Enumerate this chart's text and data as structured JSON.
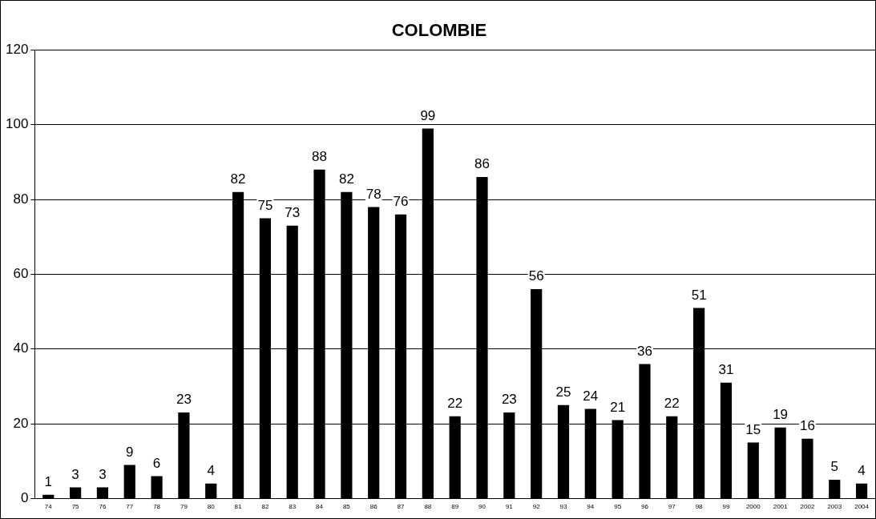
{
  "chart_data": {
    "type": "bar",
    "title": "COLOMBIE",
    "categories": [
      "74",
      "75",
      "76",
      "77",
      "78",
      "79",
      "80",
      "81",
      "82",
      "83",
      "84",
      "85",
      "86",
      "87",
      "88",
      "89",
      "90",
      "91",
      "92",
      "93",
      "94",
      "95",
      "96",
      "97",
      "98",
      "99",
      "2000",
      "2001",
      "2002",
      "2003",
      "2004"
    ],
    "values": [
      1,
      3,
      3,
      9,
      6,
      23,
      4,
      82,
      75,
      73,
      88,
      82,
      78,
      76,
      99,
      22,
      86,
      23,
      56,
      25,
      24,
      21,
      36,
      22,
      51,
      31,
      15,
      19,
      16,
      5,
      4
    ],
    "color": "#000000",
    "ylim": [
      0,
      120
    ],
    "yticks": [
      0,
      20,
      40,
      60,
      80,
      100,
      120
    ],
    "grid": "y",
    "data_labels": true,
    "legend": false
  }
}
